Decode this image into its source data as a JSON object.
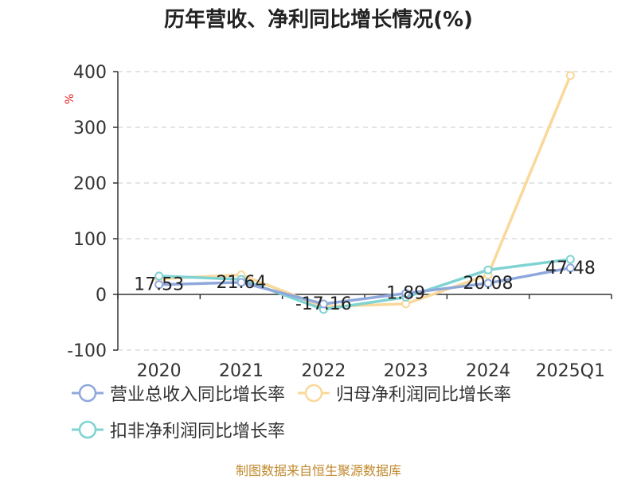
{
  "chart_data": {
    "type": "line",
    "title": "历年营收、净利同比增长情况(%)",
    "ylabel": "%",
    "categories": [
      "2020",
      "2021",
      "2022",
      "2023",
      "2024",
      "2025Q1"
    ],
    "ylim": [
      -100,
      400
    ],
    "yticks": [
      -100,
      0,
      100,
      200,
      300,
      400
    ],
    "grid": true,
    "legend_position": "bottom",
    "series": [
      {
        "name": "营业总收入同比增长率",
        "color": "#8fa8dc",
        "values": [
          17.53,
          21.64,
          -17.16,
          1.89,
          20.08,
          47.48
        ],
        "labels": [
          "17.53",
          "21.64",
          "-17.16",
          "1.89",
          "20.08",
          "47.48"
        ]
      },
      {
        "name": "归母净利润同比增长率",
        "color": "#f9d89a",
        "values": [
          28,
          35,
          -22,
          -17,
          35,
          393
        ]
      },
      {
        "name": "扣非净利润同比增长率",
        "color": "#7fd3d3",
        "values": [
          33,
          27,
          -27,
          -5,
          44,
          63
        ]
      }
    ]
  },
  "source": "制图数据来自恒生聚源数据库"
}
